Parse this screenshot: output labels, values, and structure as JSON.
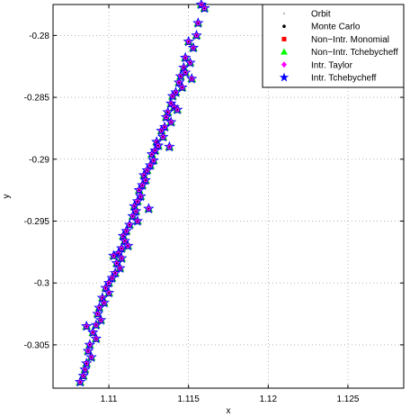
{
  "chart_data": {
    "type": "scatter",
    "xlabel": "x",
    "ylabel": "y",
    "xlim": [
      1.1065,
      1.1285
    ],
    "ylim": [
      -0.3085,
      -0.2775
    ],
    "x_ticks": [
      "1.11",
      "1.115",
      "1.12",
      "1.125"
    ],
    "y_ticks": [
      "-0.28",
      "-0.285",
      "-0.29",
      "-0.295",
      "-0.3",
      "-0.305"
    ],
    "grid": true,
    "legend_position": "top-right",
    "legend": [
      {
        "label": "Orbit",
        "marker": "dot-small",
        "color": "#000000"
      },
      {
        "label": "Monte Carlo",
        "marker": "dot",
        "color": "#000000"
      },
      {
        "label": "Non−Intr. Monomial",
        "marker": "square",
        "color": "#ff0000"
      },
      {
        "label": "Non−Intr. Tchebycheff",
        "marker": "triangle",
        "color": "#00ff00"
      },
      {
        "label": "Intr. Taylor",
        "marker": "diamond",
        "color": "#ff00ff"
      },
      {
        "label": "Intr. Tchebycheff",
        "marker": "star",
        "color": "#0000ff"
      }
    ],
    "points": [
      [
        1.1158,
        -0.2775
      ],
      [
        1.116,
        -0.2778
      ],
      [
        1.1156,
        -0.279
      ],
      [
        1.1155,
        -0.28
      ],
      [
        1.1153,
        -0.281
      ],
      [
        1.115,
        -0.2805
      ],
      [
        1.1148,
        -0.2818
      ],
      [
        1.1151,
        -0.2822
      ],
      [
        1.1147,
        -0.2826
      ],
      [
        1.1148,
        -0.283
      ],
      [
        1.1145,
        -0.2833
      ],
      [
        1.1144,
        -0.2838
      ],
      [
        1.1146,
        -0.2842
      ],
      [
        1.1142,
        -0.2846
      ],
      [
        1.114,
        -0.2849
      ],
      [
        1.1139,
        -0.2855
      ],
      [
        1.1141,
        -0.2858
      ],
      [
        1.1137,
        -0.2862
      ],
      [
        1.1136,
        -0.2866
      ],
      [
        1.1139,
        -0.287
      ],
      [
        1.1135,
        -0.2874
      ],
      [
        1.1133,
        -0.2877
      ],
      [
        1.1134,
        -0.2882
      ],
      [
        1.113,
        -0.2886
      ],
      [
        1.1131,
        -0.2889
      ],
      [
        1.1129,
        -0.2893
      ],
      [
        1.1127,
        -0.2896
      ],
      [
        1.1128,
        -0.2901
      ],
      [
        1.1126,
        -0.2905
      ],
      [
        1.1124,
        -0.2909
      ],
      [
        1.1122,
        -0.2913
      ],
      [
        1.1123,
        -0.2917
      ],
      [
        1.1121,
        -0.2921
      ],
      [
        1.1119,
        -0.2925
      ],
      [
        1.112,
        -0.293
      ],
      [
        1.1118,
        -0.2934
      ],
      [
        1.1116,
        -0.2938
      ],
      [
        1.1117,
        -0.2942
      ],
      [
        1.1115,
        -0.2946
      ],
      [
        1.1118,
        -0.295
      ],
      [
        1.1113,
        -0.2953
      ],
      [
        1.1111,
        -0.2958
      ],
      [
        1.1109,
        -0.2962
      ],
      [
        1.111,
        -0.2966
      ],
      [
        1.1112,
        -0.297
      ],
      [
        1.1108,
        -0.2972
      ],
      [
        1.1106,
        -0.2976
      ],
      [
        1.1108,
        -0.298
      ],
      [
        1.1105,
        -0.2984
      ],
      [
        1.1107,
        -0.2988
      ],
      [
        1.1104,
        -0.2992
      ],
      [
        1.1102,
        -0.2996
      ],
      [
        1.11,
        -0.3
      ],
      [
        1.1098,
        -0.3004
      ],
      [
        1.11,
        -0.3008
      ],
      [
        1.1096,
        -0.3012
      ],
      [
        1.1097,
        -0.3016
      ],
      [
        1.1094,
        -0.302
      ],
      [
        1.1093,
        -0.3025
      ],
      [
        1.1095,
        -0.303
      ],
      [
        1.1092,
        -0.3034
      ],
      [
        1.109,
        -0.304
      ],
      [
        1.1092,
        -0.3045
      ],
      [
        1.1088,
        -0.305
      ],
      [
        1.1087,
        -0.3055
      ],
      [
        1.1089,
        -0.306
      ],
      [
        1.1086,
        -0.3065
      ],
      [
        1.1085,
        -0.307
      ],
      [
        1.1084,
        -0.3075
      ],
      [
        1.1082,
        -0.308
      ],
      [
        1.1086,
        -0.3035
      ],
      [
        1.1103,
        -0.2978
      ],
      [
        1.1125,
        -0.294
      ],
      [
        1.1138,
        -0.289
      ],
      [
        1.1143,
        -0.286
      ],
      [
        1.1152,
        -0.2835
      ]
    ]
  }
}
